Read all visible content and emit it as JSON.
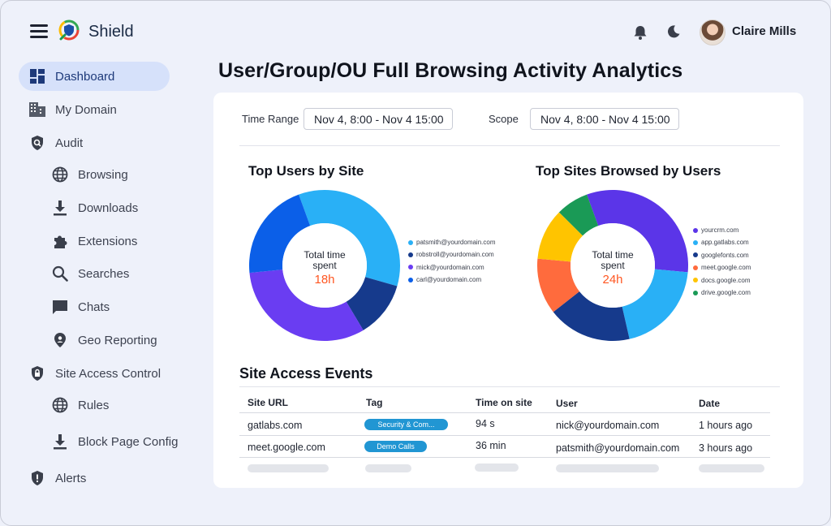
{
  "app": {
    "brand": "Shield"
  },
  "header": {
    "user_name": "Claire Mills"
  },
  "sidebar": {
    "items": [
      {
        "label": "Dashboard",
        "icon": "dashboard-icon",
        "active": true
      },
      {
        "label": "My Domain",
        "icon": "building-icon"
      },
      {
        "label": "Audit",
        "icon": "audit-shield-icon"
      },
      {
        "label": "Browsing",
        "icon": "globe-icon"
      },
      {
        "label": "Downloads",
        "icon": "download-icon"
      },
      {
        "label": "Extensions",
        "icon": "puzzle-icon"
      },
      {
        "label": "Searches",
        "icon": "search-icon"
      },
      {
        "label": "Chats",
        "icon": "chat-icon"
      },
      {
        "label": "Geo Reporting",
        "icon": "location-pin-icon"
      },
      {
        "label": "Site Access Control",
        "icon": "lock-shield-icon"
      },
      {
        "label": "Rules",
        "icon": "globe-icon"
      },
      {
        "label": "Block Page Config",
        "icon": "download-icon"
      },
      {
        "label": "Alerts",
        "icon": "alert-shield-icon"
      }
    ]
  },
  "page": {
    "title": "User/Group/OU Full Browsing Activity Analytics"
  },
  "filters": {
    "time_range_label": "Time Range",
    "time_range_value": "Nov 4, 8:00 - Nov 4 15:00",
    "scope_label": "Scope",
    "scope_value": "Nov 4, 8:00 - Nov 4 15:00"
  },
  "chart_data": [
    {
      "type": "pie",
      "donut": true,
      "title": "Top Users by Site",
      "center_label": "Total time spent",
      "center_value": "18h",
      "categories": [
        "patsmith@yourdomain.com",
        "robstroll@yourdomain.com",
        "mick@yourdomain.com",
        "carl@yourdomain.com"
      ],
      "values": [
        35,
        12,
        32,
        21
      ],
      "colors": [
        "#29b0f6",
        "#163a8c",
        "#6a3df2",
        "#0b5fe8"
      ],
      "legend_position": "right"
    },
    {
      "type": "pie",
      "donut": true,
      "title": "Top Sites Browsed by Users",
      "center_label": "Total time spent",
      "center_value": "24h",
      "categories": [
        "yourcrm.com",
        "app.gatlabs.com",
        "googlefonts.com",
        "meet.google.com",
        "docs.google.com",
        "drive.google.com"
      ],
      "values": [
        32,
        20,
        18,
        12,
        11,
        7
      ],
      "colors": [
        "#5b35e8",
        "#29b0f6",
        "#163a8c",
        "#ff6b3d",
        "#ffc400",
        "#1a9a56"
      ],
      "legend_position": "right"
    }
  ],
  "table": {
    "title": "Site Access Events",
    "columns": [
      "Site URL",
      "Tag",
      "Time on site",
      "User",
      "Date"
    ],
    "rows": [
      {
        "url": "gatlabs.com",
        "tag": "Security & Com...",
        "time": "94 s",
        "user": "nick@yourdomain.com",
        "date": "1 hours ago"
      },
      {
        "url": "meet.google.com",
        "tag": "Demo Calls",
        "time": "36 min",
        "user": "patsmith@yourdomain.com",
        "date": "3 hours ago"
      }
    ]
  },
  "colors": {
    "accent": "#2196d3",
    "highlight": "#ff5722",
    "active_nav": "#d6e1fa"
  }
}
